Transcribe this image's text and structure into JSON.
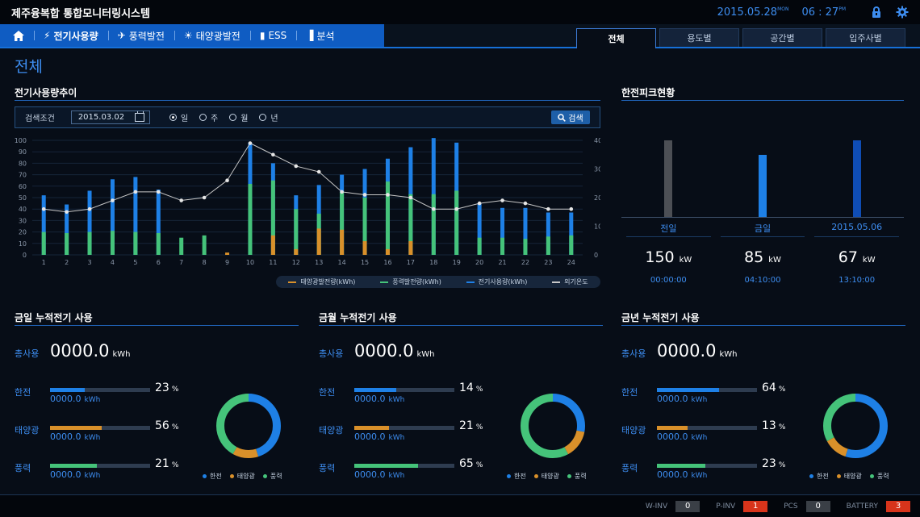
{
  "header": {
    "app_title": "제주융복합 통합모니터링시스템",
    "date": "2015.05.28",
    "day": "MON",
    "time": "06 : 27",
    "ampm": "PM",
    "icons": [
      "lock-icon",
      "gear-icon"
    ]
  },
  "nav": {
    "home_icon": "home-icon",
    "items": [
      {
        "label": "전기사용량",
        "icon": "lightning-icon",
        "active": true
      },
      {
        "label": "풍력발전",
        "icon": "wind-turbine-icon"
      },
      {
        "label": "태양광발전",
        "icon": "sun-icon"
      },
      {
        "label": "ESS",
        "icon": "battery-icon"
      },
      {
        "label": "분석",
        "icon": "bar-chart-icon"
      }
    ]
  },
  "tabs": [
    {
      "label": "전체",
      "active": true
    },
    {
      "label": "용도별"
    },
    {
      "label": "공간별"
    },
    {
      "label": "입주사별"
    }
  ],
  "page_title": "전체",
  "usage_section": {
    "title": "전기사용량추이",
    "search_label": "검색조건",
    "date_value": "2015.03.02",
    "radios": [
      {
        "label": "일",
        "checked": true
      },
      {
        "label": "주"
      },
      {
        "label": "월"
      },
      {
        "label": "년"
      }
    ],
    "search_button": "검색"
  },
  "chart_data": {
    "type": "bar",
    "categories": [
      "1",
      "2",
      "3",
      "4",
      "5",
      "6",
      "7",
      "8",
      "9",
      "10",
      "11",
      "12",
      "13",
      "14",
      "15",
      "16",
      "17",
      "18",
      "19",
      "20",
      "21",
      "22",
      "23",
      "24"
    ],
    "ylim_left": [
      0,
      100
    ],
    "ylim_right": [
      0,
      40
    ],
    "yticks_left": [
      "0",
      "10",
      "20",
      "30",
      "40",
      "50",
      "60",
      "70",
      "80",
      "90",
      "100"
    ],
    "yticks_right": [
      "0",
      "10",
      "20",
      "30",
      "40"
    ],
    "series": [
      {
        "name": "태양광발전량(kWh)",
        "color": "#d9902a",
        "values": [
          0,
          0,
          0,
          0,
          0,
          0,
          0,
          0,
          2,
          0,
          17,
          5,
          23,
          22,
          12,
          5,
          12,
          0,
          0,
          0,
          0,
          0,
          0,
          0
        ]
      },
      {
        "name": "풍력발전량(kWh)",
        "color": "#45c37a",
        "values": [
          20,
          19,
          20,
          21,
          20,
          19,
          15,
          17,
          0,
          62,
          65,
          40,
          36,
          55,
          50,
          64,
          53,
          53,
          56,
          15,
          15,
          14,
          16,
          17
        ]
      },
      {
        "name": "전기사용량(kWh)",
        "color": "#1e80e6",
        "values": [
          52,
          44,
          56,
          66,
          68,
          57,
          0,
          0,
          0,
          98,
          80,
          52,
          61,
          70,
          75,
          84,
          94,
          102,
          98,
          45,
          41,
          41,
          37,
          37
        ]
      },
      {
        "name": "외기온도",
        "color": "#c8c8c8",
        "axis": "right",
        "values": [
          16,
          15,
          16,
          19,
          22,
          22,
          19,
          20,
          26,
          39,
          35,
          31,
          29,
          22,
          21,
          21,
          20,
          16,
          16,
          18,
          19,
          18,
          16,
          16
        ]
      }
    ]
  },
  "peak_section": {
    "title": "한전피크현황",
    "items": [
      {
        "label": "전일",
        "value": "150",
        "unit": "kW",
        "time": "00:00:00",
        "ratio": 0.79,
        "color": "#4c4f55"
      },
      {
        "label": "금일",
        "value": "85",
        "unit": "kW",
        "time": "04:10:00",
        "ratio": 0.64,
        "color": "#1e80e6"
      },
      {
        "label": "2015.05.06",
        "value": "67",
        "unit": "kW",
        "time": "13:10:00",
        "ratio": 0.79,
        "color": "#0f4db5"
      }
    ]
  },
  "panels": [
    {
      "title": "금일 누적전기 사용",
      "total_label": "총사용",
      "total_value": "0000.0",
      "total_unit": "kWh",
      "rows": [
        {
          "label": "한전",
          "pct": "23",
          "pct_unit": "%",
          "kwh": "0000.0",
          "kwh_unit": "kWh",
          "fill": 0.35,
          "color": "#1e80e6"
        },
        {
          "label": "태양광",
          "pct": "56",
          "pct_unit": "%",
          "kwh": "0000.0",
          "kwh_unit": "kWh",
          "fill": 0.52,
          "color": "#d9902a"
        },
        {
          "label": "풍력",
          "pct": "21",
          "pct_unit": "%",
          "kwh": "0000.0",
          "kwh_unit": "kWh",
          "fill": 0.47,
          "color": "#45c37a"
        }
      ],
      "donut": [
        0.45,
        0.13,
        0.42
      ],
      "legend": [
        "한전",
        "태양광",
        "풍력"
      ]
    },
    {
      "title": "금월 누적전기 사용",
      "total_label": "총사용",
      "total_value": "0000.0",
      "total_unit": "kWh",
      "rows": [
        {
          "label": "한전",
          "pct": "14",
          "pct_unit": "%",
          "kwh": "0000.0",
          "kwh_unit": "kWh",
          "fill": 0.42,
          "color": "#1e80e6"
        },
        {
          "label": "태양광",
          "pct": "21",
          "pct_unit": "%",
          "kwh": "0000.0",
          "kwh_unit": "kWh",
          "fill": 0.35,
          "color": "#d9902a"
        },
        {
          "label": "풍력",
          "pct": "65",
          "pct_unit": "%",
          "kwh": "0000.0",
          "kwh_unit": "kWh",
          "fill": 0.64,
          "color": "#45c37a"
        }
      ],
      "donut": [
        0.28,
        0.14,
        0.58
      ],
      "legend": [
        "한전",
        "태양광",
        "풍력"
      ]
    },
    {
      "title": "금년 누적전기 사용",
      "total_label": "총사용",
      "total_value": "0000.0",
      "total_unit": "kWh",
      "rows": [
        {
          "label": "한전",
          "pct": "64",
          "pct_unit": "%",
          "kwh": "0000.0",
          "kwh_unit": "kWh",
          "fill": 0.62,
          "color": "#1e80e6"
        },
        {
          "label": "태양광",
          "pct": "13",
          "pct_unit": "%",
          "kwh": "0000.0",
          "kwh_unit": "kWh",
          "fill": 0.31,
          "color": "#d9902a"
        },
        {
          "label": "풍력",
          "pct": "23",
          "pct_unit": "%",
          "kwh": "0000.0",
          "kwh_unit": "kWh",
          "fill": 0.48,
          "color": "#45c37a"
        }
      ],
      "donut": [
        0.55,
        0.12,
        0.33
      ],
      "legend": [
        "한전",
        "태양광",
        "풍력"
      ]
    }
  ],
  "status_bar": [
    {
      "label": "W-INV",
      "value": "0",
      "color": "#3a3f46"
    },
    {
      "label": "P-INV",
      "value": "1",
      "color": "#d8341b"
    },
    {
      "label": "PCS",
      "value": "0",
      "color": "#3a3f46"
    },
    {
      "label": "BATTERY",
      "value": "3",
      "color": "#d8341b"
    }
  ]
}
